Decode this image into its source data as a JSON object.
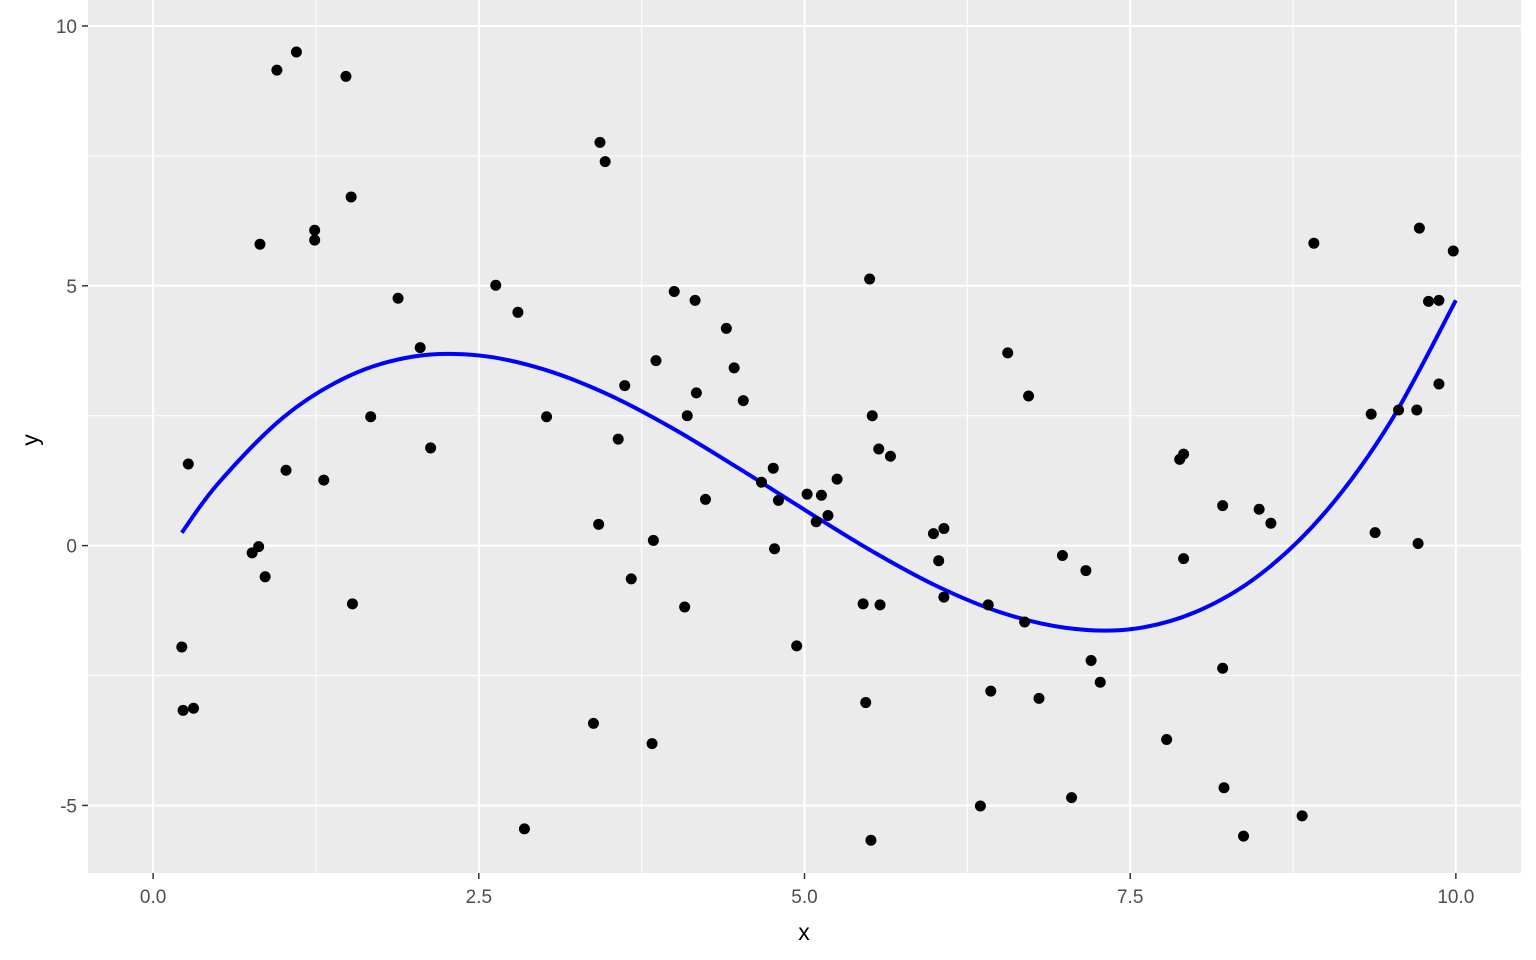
{
  "chart_data": {
    "type": "scatter",
    "title": "",
    "xlabel": "x",
    "ylabel": "y",
    "xlim": [
      -0.5,
      10.5
    ],
    "ylim": [
      -6.3,
      10.5
    ],
    "x_ticks": [
      0.0,
      2.5,
      5.0,
      7.5,
      10.0
    ],
    "x_tick_labels": [
      "0.0",
      "2.5",
      "5.0",
      "7.5",
      "10.0"
    ],
    "y_ticks": [
      -5,
      0,
      5,
      10
    ],
    "y_tick_labels": [
      "-5",
      "0",
      "5",
      "10"
    ],
    "grid": true,
    "colors": {
      "panel": "#ebebeb",
      "grid": "#ffffff",
      "points": "#000000",
      "fit_line": "#0000ff"
    },
    "points": {
      "x": [
        0.22,
        0.23,
        0.31,
        0.27,
        0.76,
        0.81,
        0.86,
        0.82,
        0.95,
        1.02,
        1.1,
        1.24,
        1.24,
        1.31,
        1.48,
        1.52,
        1.53,
        1.67,
        1.88,
        2.05,
        2.13,
        2.63,
        2.8,
        2.85,
        3.02,
        3.38,
        3.42,
        3.43,
        3.47,
        3.57,
        3.62,
        3.67,
        3.83,
        3.84,
        3.86,
        4.0,
        4.08,
        4.1,
        4.16,
        4.17,
        4.24,
        4.4,
        4.46,
        4.53,
        4.67,
        4.76,
        4.77,
        4.8,
        4.94,
        5.02,
        5.09,
        5.13,
        5.18,
        5.25,
        5.45,
        5.47,
        5.5,
        5.51,
        5.52,
        5.57,
        5.58,
        5.66,
        5.99,
        6.03,
        6.07,
        6.07,
        6.35,
        6.41,
        6.43,
        6.56,
        6.69,
        6.72,
        6.8,
        6.98,
        7.05,
        7.16,
        7.2,
        7.27,
        7.78,
        7.88,
        7.91,
        7.91,
        8.21,
        8.21,
        8.22,
        8.37,
        8.49,
        8.58,
        8.82,
        8.91,
        9.35,
        9.38,
        9.56,
        9.7,
        9.71,
        9.72,
        9.79,
        9.87,
        9.87,
        9.98
      ],
      "y": [
        -1.95,
        -3.17,
        -3.13,
        1.57,
        -0.14,
        -0.02,
        -0.6,
        5.8,
        9.15,
        1.45,
        9.5,
        6.07,
        5.88,
        1.26,
        9.03,
        6.71,
        -1.12,
        2.48,
        4.76,
        3.81,
        1.88,
        5.01,
        4.49,
        -5.45,
        2.48,
        -3.42,
        0.41,
        7.76,
        7.39,
        2.05,
        3.08,
        -0.64,
        -3.81,
        0.1,
        3.56,
        4.89,
        -1.18,
        2.5,
        4.72,
        2.94,
        0.89,
        4.18,
        3.42,
        2.79,
        1.22,
        1.49,
        -0.06,
        0.87,
        -1.93,
        0.99,
        0.46,
        0.97,
        0.58,
        1.28,
        -1.12,
        -3.02,
        5.13,
        -5.67,
        2.5,
        1.86,
        -1.14,
        1.72,
        0.23,
        -0.29,
        0.33,
        -0.99,
        -5.01,
        -1.14,
        -2.8,
        3.71,
        -1.47,
        2.88,
        -2.94,
        -0.19,
        -4.85,
        -0.48,
        -2.21,
        -2.63,
        -3.73,
        1.66,
        1.76,
        -0.25,
        0.77,
        -2.36,
        -4.66,
        -5.59,
        0.7,
        0.43,
        -5.2,
        5.82,
        2.53,
        0.25,
        2.61,
        2.61,
        0.04,
        6.11,
        4.7,
        4.72,
        3.11,
        5.67
      ]
    },
    "fit_line": {
      "type": "line",
      "x": [
        0.22,
        0.5,
        1.0,
        1.5,
        2.0,
        2.5,
        3.0,
        3.5,
        4.0,
        4.5,
        5.0,
        5.5,
        6.0,
        6.5,
        7.0,
        7.5,
        8.0,
        8.5,
        9.0,
        9.5,
        10.0
      ],
      "y": [
        0.25,
        1.2,
        2.47,
        3.26,
        3.64,
        3.66,
        3.39,
        2.9,
        2.24,
        1.48,
        0.69,
        -0.08,
        -0.76,
        -1.28,
        -1.58,
        -1.61,
        -1.28,
        -0.55,
        0.65,
        2.39,
        4.72
      ]
    }
  }
}
